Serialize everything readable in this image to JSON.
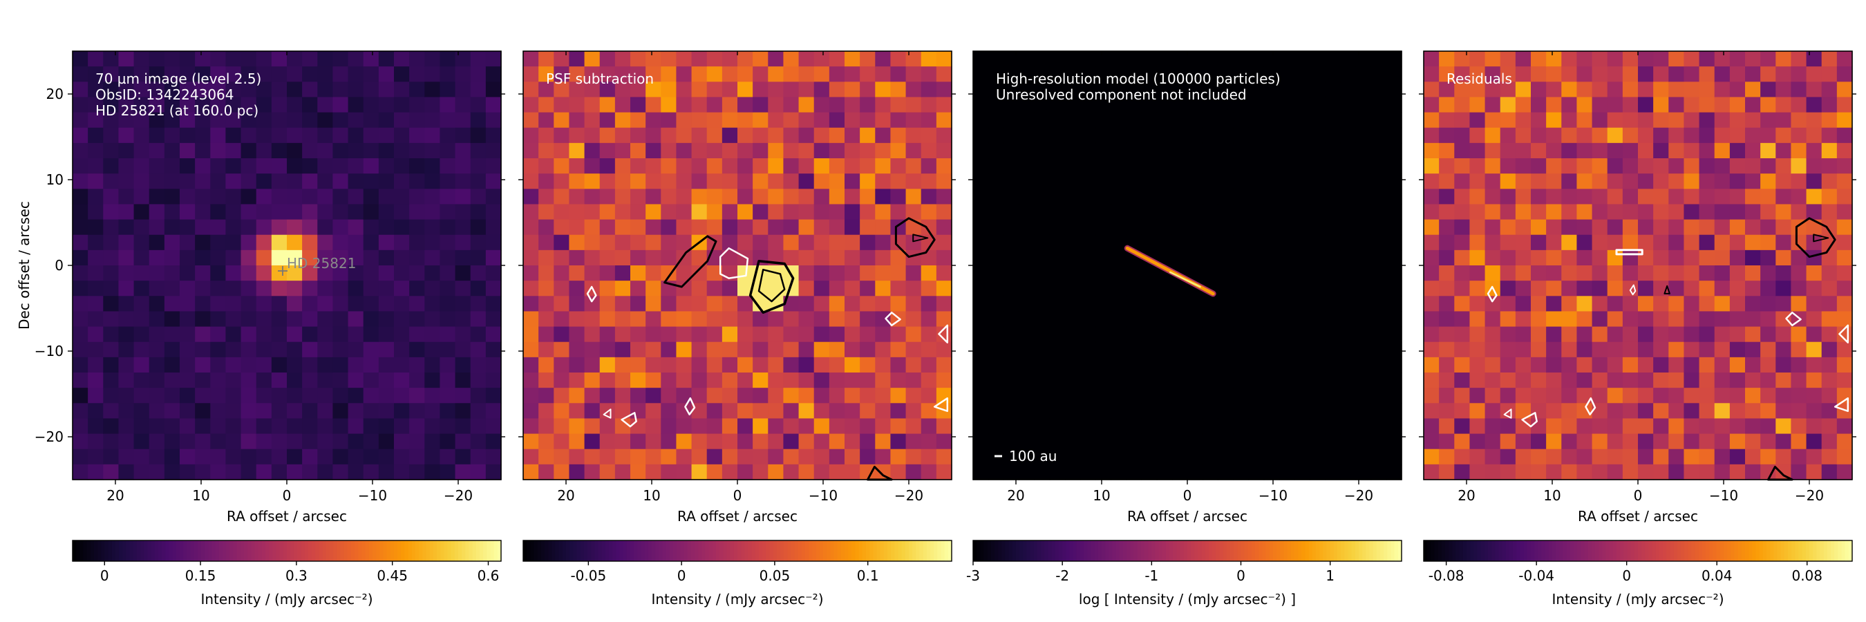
{
  "colors": {
    "colormap": "inferno",
    "colormap_stops": [
      "#000004",
      "#1b0c41",
      "#4a0c6b",
      "#781c6d",
      "#a52c60",
      "#cf4446",
      "#ed6925",
      "#fb9b06",
      "#f7d13d",
      "#fcffa4"
    ],
    "contour_positive": "#000000",
    "contour_negative": "#ffffff",
    "annotation_text": "#ffffff",
    "axis_text": "#000000"
  },
  "chart_data": [
    {
      "type": "heatmap",
      "panel": "observation",
      "annotations": [
        "70 µm image (level 2.5)",
        "ObsID: 1342243064",
        "HD 25821 (at 160.0 pc)"
      ],
      "target_label": "HD 25821",
      "target_marker": "plus",
      "target_position": [
        0,
        0
      ],
      "xlabel": "RA offset / arcsec",
      "ylabel": "Dec offset / arcsec",
      "xlim": [
        25,
        -25
      ],
      "ylim": [
        -25,
        25
      ],
      "xticks": [
        20,
        10,
        0,
        -10,
        -20
      ],
      "xtick_labels": [
        "20",
        "10",
        "0",
        "−10",
        "−20"
      ],
      "yticks": [
        20,
        10,
        0,
        -10,
        -20
      ],
      "ytick_labels": [
        "20",
        "10",
        "0",
        "−10",
        "−20"
      ],
      "grid": false,
      "source": {
        "peak_mjy_arcsec2": 0.62,
        "center": [
          0,
          1
        ],
        "fwhm_arcsec": 5.5
      },
      "background_level": 0.08,
      "colorbar": {
        "label": "Intensity / (mJy arcsec⁻²)",
        "min": -0.05,
        "max": 0.62,
        "ticks": [
          0,
          0.15,
          0.3,
          0.45,
          0.6
        ],
        "tick_labels": [
          "0",
          "0.15",
          "0.3",
          "0.45",
          "0.6"
        ]
      }
    },
    {
      "type": "heatmap",
      "panel": "psf_subtraction",
      "annotations": [
        "PSF subtraction"
      ],
      "xlabel": "RA offset / arcsec",
      "ylabel": "",
      "xlim": [
        25,
        -25
      ],
      "ylim": [
        -25,
        25
      ],
      "xticks": [
        20,
        10,
        0,
        -10,
        -20
      ],
      "xtick_labels": [
        "20",
        "10",
        "0",
        "−10",
        "−20"
      ],
      "yticks": [
        20,
        10,
        0,
        -10,
        -20
      ],
      "grid": false,
      "contour_levels": [
        -0.08,
        0.08
      ],
      "colorbar": {
        "label": "Intensity / (mJy arcsec⁻²)",
        "min": -0.085,
        "max": 0.145,
        "ticks": [
          -0.05,
          0,
          0.05,
          0.1
        ],
        "tick_labels": [
          "-0.05",
          "0",
          "0.05",
          "0.1"
        ]
      }
    },
    {
      "type": "heatmap",
      "panel": "model",
      "annotations": [
        "High-resolution model (100000 particles)",
        "Unresolved component not included"
      ],
      "scalebar_label": "100 au",
      "xlabel": "RA offset / arcsec",
      "ylabel": "",
      "xlim": [
        25,
        -25
      ],
      "ylim": [
        -25,
        25
      ],
      "xticks": [
        20,
        10,
        0,
        -10,
        -20
      ],
      "xtick_labels": [
        "20",
        "10",
        "0",
        "−10",
        "−20"
      ],
      "yticks": [
        20,
        10,
        0,
        -10,
        -20
      ],
      "grid": false,
      "disk": {
        "from": [
          7,
          2
        ],
        "to": [
          -3,
          -3.3
        ],
        "peak_log_intensity": 1.8
      },
      "colorbar": {
        "label": "log [ Intensity / (mJy arcsec⁻²) ]",
        "min": -3,
        "max": 1.8,
        "ticks": [
          -3,
          -2,
          -1,
          0,
          1
        ],
        "tick_labels": [
          "-3",
          "-2",
          "-1",
          "0",
          "1"
        ]
      }
    },
    {
      "type": "heatmap",
      "panel": "residuals",
      "annotations": [
        "Residuals"
      ],
      "xlabel": "RA offset / arcsec",
      "ylabel": "",
      "xlim": [
        25,
        -25
      ],
      "ylim": [
        -25,
        25
      ],
      "xticks": [
        20,
        10,
        0,
        -10,
        -20
      ],
      "xtick_labels": [
        "20",
        "10",
        "0",
        "−10",
        "−20"
      ],
      "yticks": [
        20,
        10,
        0,
        -10,
        -20
      ],
      "grid": false,
      "contour_levels": [
        -0.08,
        0.08
      ],
      "colorbar": {
        "label": "Intensity / (mJy arcsec⁻²)",
        "min": -0.09,
        "max": 0.1,
        "ticks": [
          -0.08,
          -0.04,
          0,
          0.04,
          0.08
        ],
        "tick_labels": [
          "-0.08",
          "-0.04",
          "0",
          "0.04",
          "0.08"
        ]
      }
    }
  ]
}
